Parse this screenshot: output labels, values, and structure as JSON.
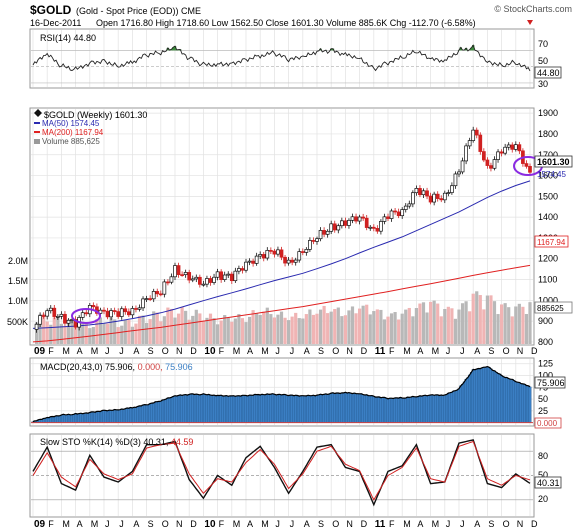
{
  "header": {
    "symbol": "$GOLD",
    "name": "(Gold - Spot Price (EOD))",
    "exchange": "CME",
    "watermark": "© StockCharts.com",
    "date": "16-Dec-2011",
    "quote": "Open 1716.80  High 1718.60  Low 1562.50  Close 1601.30  Volume 885.6K  Chg -112.70 (-6.58%)"
  },
  "colors": {
    "rsi_line": "#222222",
    "rsi_fill": "#3c8c3c",
    "ma50": "#2a2ab0",
    "ma200": "#e02020",
    "candle_up": "#111111",
    "candle_down": "#d02020",
    "volume_up": "#b8b8b8",
    "volume_down": "#f0b4b4",
    "macd_fill": "#3b7fc4",
    "macd_signal": "#d04040",
    "sto_k": "#111111",
    "sto_d": "#d02020",
    "highlight_ellipse": "#8a2be2",
    "grid": "#e2e2e2"
  },
  "rsi_panel": {
    "label": "RSI(14) 44.80",
    "tick_labels": [
      "70",
      "50",
      "30"
    ],
    "current_label": "44.80"
  },
  "price_panel": {
    "title": "$GOLD (Weekly) 1601.30",
    "legend": [
      {
        "text": "MA(50) 1574.45",
        "color": "#2a2ab0"
      },
      {
        "text": "MA(200) 1167.94",
        "color": "#e02020"
      },
      {
        "text": "Volume 885,625",
        "color": "#777777"
      }
    ],
    "tick_labels": [
      "1900",
      "1800",
      "1700",
      "1600",
      "1500",
      "1400",
      "1300",
      "1200",
      "1100",
      "1000",
      "900",
      "800"
    ],
    "volume_tick_labels": [
      "2.0M",
      "1.5M",
      "1.0M",
      "500K"
    ],
    "close_label": "1601.30",
    "ma50_label": "1574.45",
    "ma200_label": "1167.94",
    "volume_label": "885625"
  },
  "macd_panel": {
    "label_prefix": "MACD(20,43,0) 75.906,",
    "label_mid": "0.000,",
    "label_end": "75.906",
    "tick_labels": [
      "125",
      "100",
      "75",
      "50",
      "25",
      "0"
    ],
    "current_label": "75.906",
    "zero_label": "0.000"
  },
  "sto_panel": {
    "label_prefix": "Slow STO %K(14) %D(3) 40.31,",
    "label_end": "44.59",
    "tick_labels": [
      "80",
      "50",
      "20"
    ],
    "current_label": "40.31"
  },
  "x_axis_labels": [
    "09",
    "F",
    "M",
    "A",
    "M",
    "J",
    "J",
    "A",
    "S",
    "O",
    "N",
    "D",
    "10",
    "F",
    "M",
    "A",
    "M",
    "J",
    "J",
    "A",
    "S",
    "O",
    "N",
    "D",
    "11",
    "F",
    "M",
    "A",
    "M",
    "J",
    "J",
    "A",
    "S",
    "O",
    "N",
    "D"
  ],
  "chart_data": [
    {
      "type": "line",
      "title": "RSI(14) 44.80",
      "ylim": [
        25,
        95
      ],
      "x": [
        "2009-01",
        "2009-02",
        "2009-03",
        "2009-04",
        "2009-05",
        "2009-06",
        "2009-07",
        "2009-08",
        "2009-09",
        "2009-10",
        "2009-11",
        "2009-12",
        "2010-01",
        "2010-02",
        "2010-03",
        "2010-04",
        "2010-05",
        "2010-06",
        "2010-07",
        "2010-08",
        "2010-09",
        "2010-10",
        "2010-11",
        "2010-12",
        "2011-01",
        "2011-02",
        "2011-03",
        "2011-04",
        "2011-05",
        "2011-06",
        "2011-07",
        "2011-08",
        "2011-09",
        "2011-10",
        "2011-11",
        "2011-12"
      ],
      "series": [
        {
          "name": "RSI(14)",
          "values": [
            52,
            64,
            50,
            46,
            56,
            58,
            52,
            56,
            64,
            66,
            72,
            60,
            52,
            54,
            55,
            60,
            64,
            66,
            58,
            60,
            68,
            70,
            66,
            62,
            48,
            56,
            60,
            68,
            58,
            56,
            70,
            74,
            58,
            52,
            56,
            44.8
          ]
        }
      ]
    },
    {
      "type": "line",
      "title": "$GOLD (Weekly) 1601.30",
      "ylim": [
        790,
        1920
      ],
      "x": [
        "2009-01",
        "2009-02",
        "2009-03",
        "2009-04",
        "2009-05",
        "2009-06",
        "2009-07",
        "2009-08",
        "2009-09",
        "2009-10",
        "2009-11",
        "2009-12",
        "2010-01",
        "2010-02",
        "2010-03",
        "2010-04",
        "2010-05",
        "2010-06",
        "2010-07",
        "2010-08",
        "2010-09",
        "2010-10",
        "2010-11",
        "2010-12",
        "2011-01",
        "2011-02",
        "2011-03",
        "2011-04",
        "2011-05",
        "2011-06",
        "2011-07",
        "2011-08",
        "2011-09",
        "2011-10",
        "2011-11",
        "2011-12"
      ],
      "series": [
        {
          "name": "$GOLD (Weekly)",
          "values": [
            860,
            960,
            915,
            885,
            975,
            935,
            940,
            950,
            1005,
            1045,
            1150,
            1105,
            1085,
            1120,
            1110,
            1180,
            1210,
            1240,
            1180,
            1230,
            1310,
            1350,
            1370,
            1405,
            1330,
            1410,
            1430,
            1530,
            1490,
            1500,
            1620,
            1830,
            1630,
            1720,
            1750,
            1601.3
          ]
        },
        {
          "name": "MA(50)",
          "values": [
            865,
            868,
            872,
            876,
            882,
            890,
            900,
            912,
            925,
            940,
            958,
            978,
            998,
            1018,
            1036,
            1055,
            1075,
            1095,
            1112,
            1130,
            1152,
            1175,
            1200,
            1228,
            1255,
            1280,
            1305,
            1335,
            1365,
            1395,
            1425,
            1460,
            1495,
            1525,
            1552,
            1574.45
          ]
        },
        {
          "name": "MA(200)",
          "values": [
            800,
            805,
            812,
            820,
            828,
            836,
            845,
            854,
            862,
            870,
            880,
            890,
            900,
            910,
            920,
            930,
            940,
            950,
            960,
            970,
            982,
            994,
            1006,
            1018,
            1030,
            1042,
            1055,
            1068,
            1080,
            1093,
            1106,
            1120,
            1133,
            1145,
            1157,
            1167.94
          ]
        }
      ]
    },
    {
      "type": "bar",
      "title": "Volume 885,625",
      "ylim": [
        0,
        2200000
      ],
      "categories": [
        "2009-01",
        "2009-02",
        "2009-03",
        "2009-04",
        "2009-05",
        "2009-06",
        "2009-07",
        "2009-08",
        "2009-09",
        "2009-10",
        "2009-11",
        "2009-12",
        "2010-01",
        "2010-02",
        "2010-03",
        "2010-04",
        "2010-05",
        "2010-06",
        "2010-07",
        "2010-08",
        "2010-09",
        "2010-10",
        "2010-11",
        "2010-12",
        "2011-01",
        "2011-02",
        "2011-03",
        "2011-04",
        "2011-05",
        "2011-06",
        "2011-07",
        "2011-08",
        "2011-09",
        "2011-10",
        "2011-11",
        "2011-12"
      ],
      "values": [
        700000,
        600000,
        550000,
        500000,
        450000,
        600000,
        500000,
        520000,
        650000,
        700000,
        800000,
        720000,
        680000,
        560000,
        620000,
        600000,
        780000,
        700000,
        620000,
        650000,
        760000,
        800000,
        700000,
        850000,
        780000,
        640000,
        700000,
        820000,
        950000,
        780000,
        760000,
        1100000,
        1050000,
        850000,
        800000,
        885625
      ]
    },
    {
      "type": "area",
      "title": "MACD(20,43,0) 75.906, 0.000, 75.906",
      "ylim": [
        -5,
        135
      ],
      "x": [
        "2009-01",
        "2009-02",
        "2009-03",
        "2009-04",
        "2009-05",
        "2009-06",
        "2009-07",
        "2009-08",
        "2009-09",
        "2009-10",
        "2009-11",
        "2009-12",
        "2010-01",
        "2010-02",
        "2010-03",
        "2010-04",
        "2010-05",
        "2010-06",
        "2010-07",
        "2010-08",
        "2010-09",
        "2010-10",
        "2010-11",
        "2010-12",
        "2011-01",
        "2011-02",
        "2011-03",
        "2011-04",
        "2011-05",
        "2011-06",
        "2011-07",
        "2011-08",
        "2011-09",
        "2011-10",
        "2011-11",
        "2011-12"
      ],
      "series": [
        {
          "name": "MACD(20,43,0)",
          "values": [
            2,
            10,
            16,
            18,
            22,
            26,
            28,
            32,
            38,
            46,
            56,
            60,
            60,
            58,
            57,
            58,
            60,
            60,
            58,
            56,
            58,
            62,
            64,
            62,
            56,
            52,
            52,
            55,
            58,
            58,
            72,
            112,
            120,
            100,
            88,
            75.906
          ]
        }
      ]
    },
    {
      "type": "line",
      "title": "Slow STO %K(14) %D(3) 40.31, 44.59",
      "ylim": [
        0,
        100
      ],
      "x": [
        "2009-01",
        "2009-02",
        "2009-03",
        "2009-04",
        "2009-05",
        "2009-06",
        "2009-07",
        "2009-08",
        "2009-09",
        "2009-10",
        "2009-11",
        "2009-12",
        "2010-01",
        "2010-02",
        "2010-03",
        "2010-04",
        "2010-05",
        "2010-06",
        "2010-07",
        "2010-08",
        "2010-09",
        "2010-10",
        "2010-11",
        "2010-12",
        "2011-01",
        "2011-02",
        "2011-03",
        "2011-04",
        "2011-05",
        "2011-06",
        "2011-07",
        "2011-08",
        "2011-09",
        "2011-10",
        "2011-11",
        "2011-12"
      ],
      "series": [
        {
          "name": "%K(14)",
          "values": [
            55,
            85,
            40,
            32,
            75,
            48,
            42,
            55,
            88,
            88,
            92,
            45,
            22,
            50,
            38,
            72,
            86,
            60,
            28,
            55,
            85,
            88,
            60,
            55,
            14,
            55,
            62,
            88,
            40,
            42,
            90,
            94,
            40,
            35,
            52,
            40.31
          ]
        },
        {
          "name": "%D(3)",
          "values": [
            50,
            78,
            48,
            36,
            70,
            52,
            45,
            52,
            84,
            88,
            90,
            52,
            28,
            46,
            42,
            66,
            82,
            64,
            34,
            52,
            80,
            86,
            64,
            56,
            20,
            50,
            60,
            84,
            46,
            42,
            86,
            92,
            46,
            38,
            50,
            44.59
          ]
        }
      ]
    }
  ]
}
